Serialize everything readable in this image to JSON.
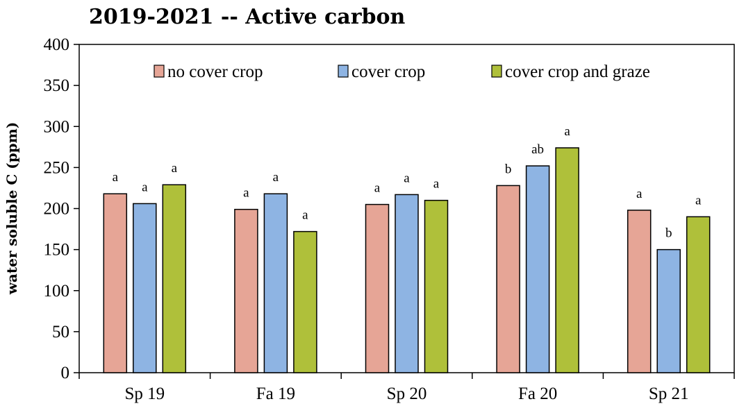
{
  "chart_data": {
    "type": "bar",
    "title": "2019-2021 -- Active carbon",
    "ylabel": "water soluble C (ppm)",
    "xlabel": "",
    "ylim": [
      0,
      400
    ],
    "yticks": [
      0,
      50,
      100,
      150,
      200,
      250,
      300,
      350,
      400
    ],
    "categories": [
      "Sp 19",
      "Fa 19",
      "Sp 20",
      "Fa 20",
      "Sp 21"
    ],
    "series": [
      {
        "name": "no cover crop",
        "color": "#E6A596",
        "values": [
          218,
          199,
          205,
          228,
          198
        ],
        "labels": [
          "a",
          "a",
          "a",
          "b",
          "a"
        ]
      },
      {
        "name": "cover crop",
        "color": "#8EB4E3",
        "values": [
          206,
          218,
          217,
          252,
          150
        ],
        "labels": [
          "a",
          "a",
          "a",
          "ab",
          "b"
        ]
      },
      {
        "name": "cover crop and graze",
        "color": "#AFC03A",
        "values": [
          229,
          172,
          210,
          274,
          190
        ],
        "labels": [
          "a",
          "a",
          "a",
          "a",
          "a"
        ]
      }
    ],
    "legend_position": "top",
    "grid": false
  }
}
